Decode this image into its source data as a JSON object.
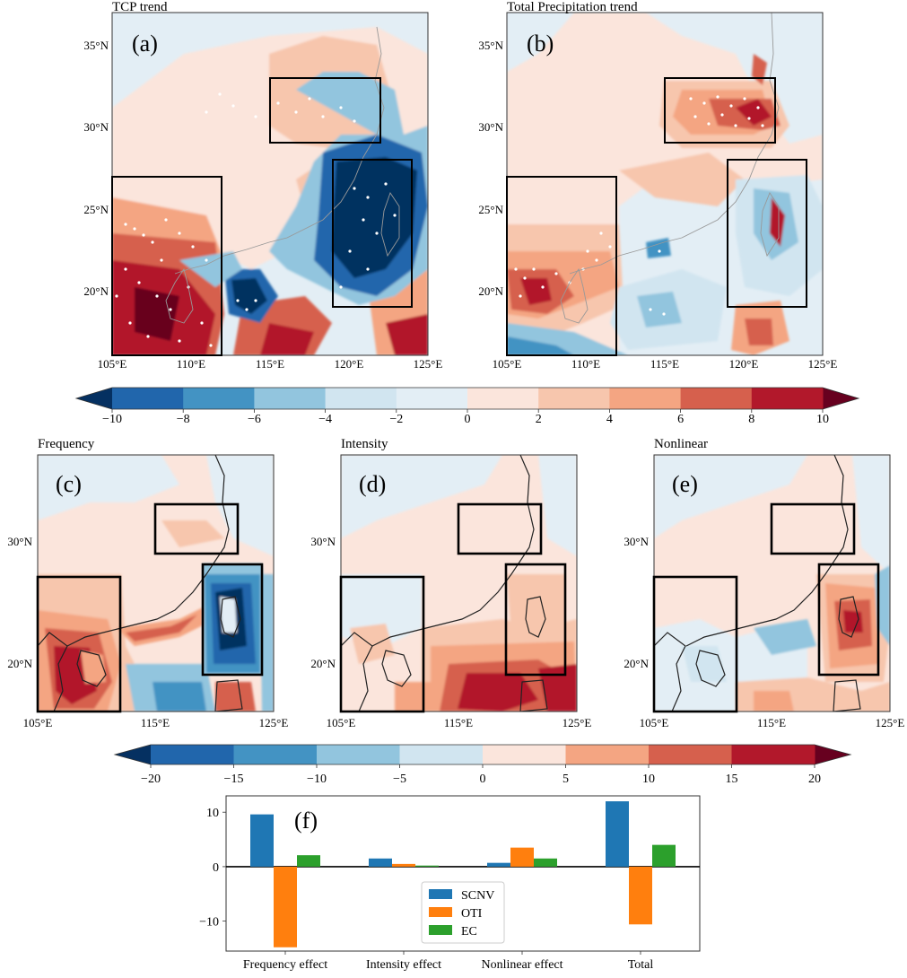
{
  "maps": [
    {
      "id": "a",
      "title": "TCP trend",
      "label": "(a)",
      "yticks": [
        "35°N",
        "30°N",
        "25°N",
        "20°N"
      ],
      "xticks": [
        "105°E",
        "110°E",
        "115°E",
        "120°E",
        "125°E"
      ]
    },
    {
      "id": "b",
      "title": "Total Precipitation trend",
      "label": "(b)",
      "yticks": [
        "35°N",
        "30°N",
        "25°N",
        "20°N"
      ],
      "xticks": [
        "105°E",
        "110°E",
        "115°E",
        "120°E",
        "125°E"
      ]
    },
    {
      "id": "c",
      "title": "Frequency",
      "label": "(c)",
      "yticks": [
        "30°N",
        "20°N"
      ],
      "xticks": [
        "105°E",
        "115°E",
        "125°E"
      ]
    },
    {
      "id": "d",
      "title": "Intensity",
      "label": "(d)",
      "yticks": [
        "30°N",
        "20°N"
      ],
      "xticks": [
        "105°E",
        "115°E",
        "125°E"
      ]
    },
    {
      "id": "e",
      "title": "Nonlinear",
      "label": "(e)",
      "yticks": [
        "30°N",
        "20°N"
      ],
      "xticks": [
        "105°E",
        "115°E",
        "125°E"
      ]
    }
  ],
  "colorbar1": {
    "ticks": [
      "−10",
      "−8",
      "−6",
      "−4",
      "−2",
      "0",
      "2",
      "4",
      "6",
      "8",
      "10"
    ],
    "colors": [
      "#2166ac",
      "#4393c3",
      "#92c5de",
      "#d1e5f0",
      "#e3eef5",
      "#fbe5dc",
      "#f7c6ad",
      "#f4a582",
      "#d6604d",
      "#b2182b"
    ],
    "under": "#053061",
    "over": "#67001f"
  },
  "colorbar2": {
    "ticks": [
      "−20",
      "−15",
      "−10",
      "−5",
      "0",
      "5",
      "10",
      "15",
      "20"
    ],
    "colors": [
      "#2166ac",
      "#4393c3",
      "#92c5de",
      "#d1e5f0",
      "#fbe5dc",
      "#f4a582",
      "#d6604d",
      "#b2182b"
    ],
    "under": "#053061",
    "over": "#67001f"
  },
  "chart_data": {
    "type": "bar",
    "label": "(f)",
    "categories": [
      "Frequency effect",
      "Intensity effect",
      "Nonlinear effect",
      "Total"
    ],
    "series": [
      {
        "name": "SCNV",
        "color": "#1f77b4",
        "values": [
          9.6,
          1.5,
          0.7,
          12.0
        ]
      },
      {
        "name": "OTI",
        "color": "#ff7f0e",
        "values": [
          -14.8,
          0.5,
          3.5,
          -10.6
        ]
      },
      {
        "name": "EC",
        "color": "#2ca02c",
        "values": [
          2.1,
          0.2,
          1.5,
          4.0
        ]
      }
    ],
    "ylim": [
      -15.5,
      13
    ],
    "yticks": [
      "10",
      "0",
      "−10"
    ],
    "ytick_values": [
      10,
      0,
      -10
    ],
    "legend": "lower-center",
    "grid": false
  }
}
